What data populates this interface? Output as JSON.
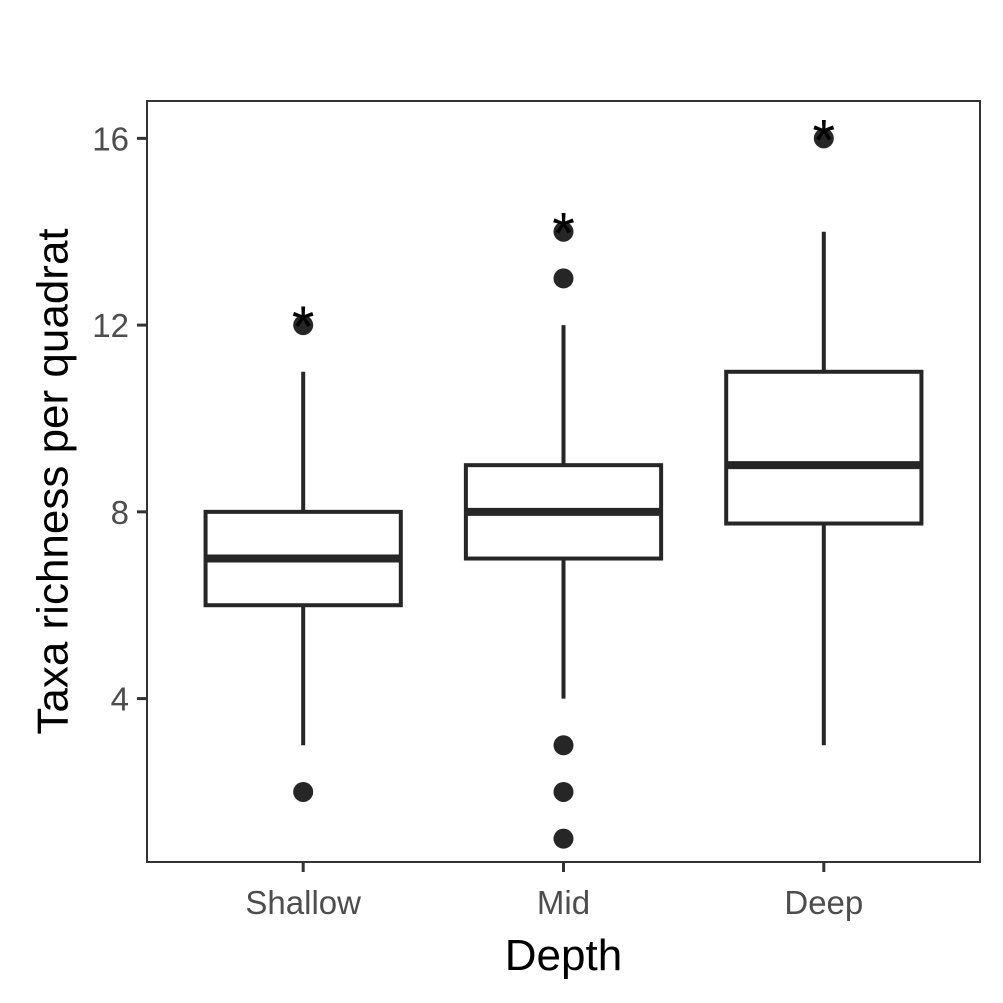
{
  "chart_data": {
    "type": "box",
    "title": "",
    "xlabel": "Depth",
    "ylabel": "Taxa richness per quadrat",
    "ylim": [
      0.5,
      16.8
    ],
    "yticks": [
      4,
      8,
      12,
      16
    ],
    "grid": false,
    "categories": [
      "Shallow",
      "Mid",
      "Deep"
    ],
    "boxes": [
      {
        "category": "Shallow",
        "whisker_low": 3,
        "q1": 6,
        "median": 7,
        "q3": 8,
        "whisker_high": 11,
        "outliers": [
          2,
          12
        ],
        "annotation": "*"
      },
      {
        "category": "Mid",
        "whisker_low": 4,
        "q1": 7,
        "median": 8,
        "q3": 9,
        "whisker_high": 12,
        "outliers": [
          1,
          2,
          3,
          13,
          14
        ],
        "annotation": "*"
      },
      {
        "category": "Deep",
        "whisker_low": 3,
        "q1": 7.75,
        "median": 9,
        "q3": 11,
        "whisker_high": 14,
        "outliers": [
          16
        ],
        "annotation": "*"
      }
    ]
  },
  "colors": {
    "box_stroke": "#262626",
    "point": "#262626",
    "panel_border": "#333333",
    "tick_text": "#4d4d4d",
    "title_text": "#000000"
  }
}
